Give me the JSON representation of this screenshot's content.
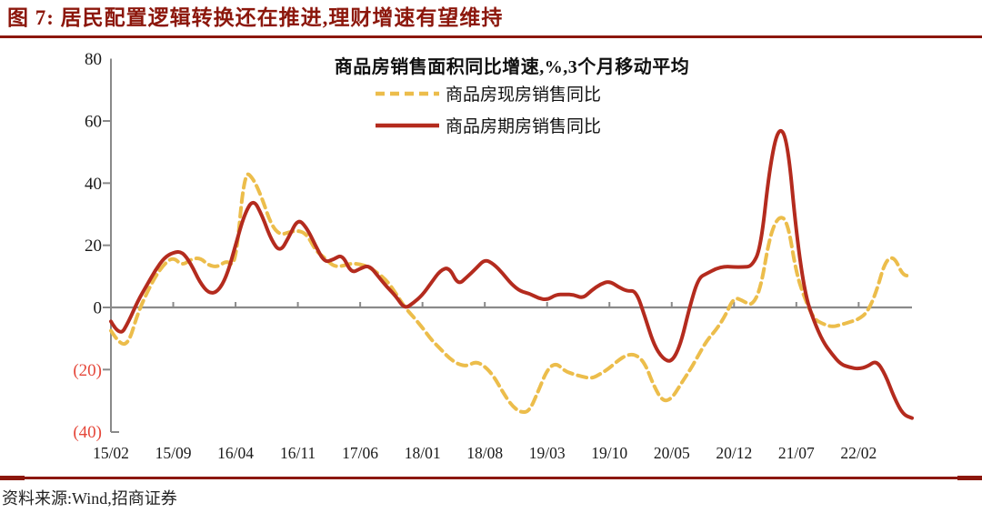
{
  "page": {
    "header": {
      "title": "图 7: 居民配置逻辑转换还在推进,理财增速有望维持"
    },
    "footer": {
      "source": "资料来源:Wind,招商证券"
    }
  },
  "chart_data": {
    "type": "line",
    "title": "商品房销售面积同比增速,%,3个月移动平均",
    "x_start": "15/02",
    "x_interval": "monthly",
    "x_tick_labels": [
      "15/02",
      "15/09",
      "16/04",
      "16/11",
      "17/06",
      "18/01",
      "18/08",
      "19/03",
      "19/10",
      "20/05",
      "20/12",
      "21/07",
      "22/02"
    ],
    "y_ticks": [
      80,
      60,
      40,
      20,
      0,
      -20,
      -40
    ],
    "y_tick_labels": [
      "80",
      "60",
      "40",
      "20",
      "0",
      "(20)",
      "(40)"
    ],
    "ylim": [
      -40,
      80
    ],
    "grid": false,
    "legend_position": "top-center",
    "colors": {
      "axis": "#8A8A8A",
      "negative_tick_label": "#E5473A",
      "title_accent": "#8C170C"
    },
    "series": [
      {
        "name": "商品房现房销售同比",
        "style": "dashed",
        "color": "#ECBD4B",
        "values": [
          -7.5,
          -12,
          -11.5,
          -2,
          4.5,
          10,
          14,
          16.2,
          13.5,
          15.5,
          16,
          13.5,
          13,
          15.1,
          13,
          44,
          41.5,
          35,
          26.6,
          23.3,
          24.2,
          24.8,
          23.6,
          18.3,
          16,
          13.2,
          13.3,
          14.2,
          13.9,
          13,
          11,
          8.6,
          4.6,
          0.1,
          -3.1,
          -6.5,
          -10.4,
          -13.3,
          -16.3,
          -18.3,
          -18.9,
          -17.4,
          -18.9,
          -22.1,
          -27.1,
          -31.5,
          -33.8,
          -33.5,
          -27,
          -20,
          -17.8,
          -20.5,
          -21.5,
          -22.3,
          -22.9,
          -21.4,
          -19.5,
          -17,
          -15.2,
          -15.2,
          -17.9,
          -25.3,
          -30.3,
          -29.4,
          -24.8,
          -20.4,
          -15.4,
          -10.4,
          -7.2,
          -2.8,
          3.3,
          2.2,
          0.4,
          6,
          22.8,
          29.5,
          28,
          11,
          2.5,
          -3.8,
          -5.3,
          -6.3,
          -5.6,
          -4.7,
          -3.8,
          -1.5,
          5,
          15,
          16.5,
          10,
          10.5
        ]
      },
      {
        "name": "商品房期房销售同比",
        "style": "solid",
        "color": "#B42B1E",
        "values": [
          -4.5,
          -9.5,
          -4.5,
          2,
          7,
          12,
          16,
          17.7,
          18,
          14,
          8,
          4.5,
          5,
          10,
          20,
          30,
          35,
          29.5,
          21.8,
          17.7,
          22.7,
          28.6,
          25.6,
          19.8,
          14.5,
          15.4,
          17.1,
          11,
          12.5,
          13.6,
          10.1,
          6.6,
          3.7,
          -0.5,
          1.5,
          4,
          8,
          11.9,
          13,
          7.2,
          9.8,
          12.5,
          15.5,
          14,
          11,
          7.5,
          5.2,
          4.5,
          3,
          2.4,
          4.1,
          4.2,
          4.1,
          2.9,
          5.5,
          7.5,
          8.5,
          6.6,
          5.2,
          5.4,
          -3,
          -12,
          -16.5,
          -17.7,
          -12,
          0,
          9.5,
          11,
          12.5,
          13.2,
          13,
          13,
          13.2,
          19,
          45,
          58.5,
          54,
          24,
          4,
          -4.5,
          -11,
          -15,
          -18.3,
          -19.3,
          -19.8,
          -19,
          -17,
          -21.5,
          -29,
          -34.5,
          -35.6
        ]
      }
    ]
  }
}
